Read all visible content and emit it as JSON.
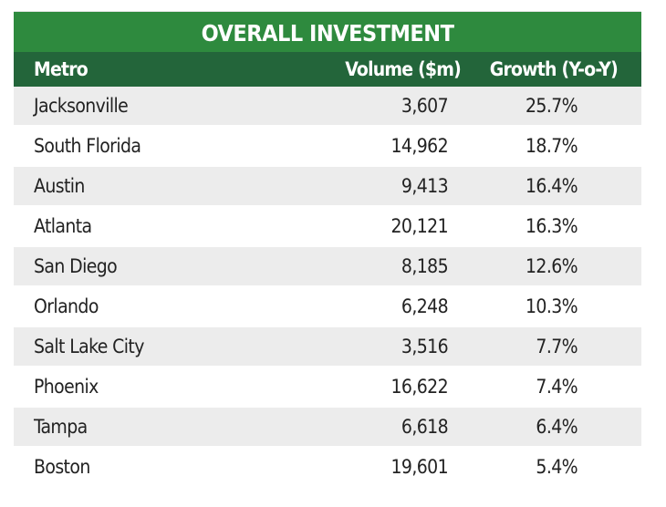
{
  "chart_data": {
    "type": "table",
    "title": "OVERALL INVESTMENT",
    "columns": [
      "Metro",
      "Volume ($m)",
      "Growth (Y-o-Y)"
    ],
    "rows": [
      {
        "metro": "Jacksonville",
        "volume": "3,607",
        "growth": "25.7%"
      },
      {
        "metro": "South Florida",
        "volume": "14,962",
        "growth": "18.7%"
      },
      {
        "metro": "Austin",
        "volume": "9,413",
        "growth": "16.4%"
      },
      {
        "metro": "Atlanta",
        "volume": "20,121",
        "growth": "16.3%"
      },
      {
        "metro": "San Diego",
        "volume": "8,185",
        "growth": "12.6%"
      },
      {
        "metro": "Orlando",
        "volume": "6,248",
        "growth": "10.3%"
      },
      {
        "metro": "Salt Lake City",
        "volume": "3,516",
        "growth": "7.7%"
      },
      {
        "metro": "Phoenix",
        "volume": "16,622",
        "growth": "7.4%"
      },
      {
        "metro": "Tampa",
        "volume": "6,618",
        "growth": "6.4%"
      },
      {
        "metro": "Boston",
        "volume": "19,601",
        "growth": "5.4%"
      }
    ]
  },
  "colors": {
    "title_bg": "#2e8a3e",
    "header_bg": "#23653a",
    "row_shade": "#ececec",
    "text": "#222222"
  }
}
